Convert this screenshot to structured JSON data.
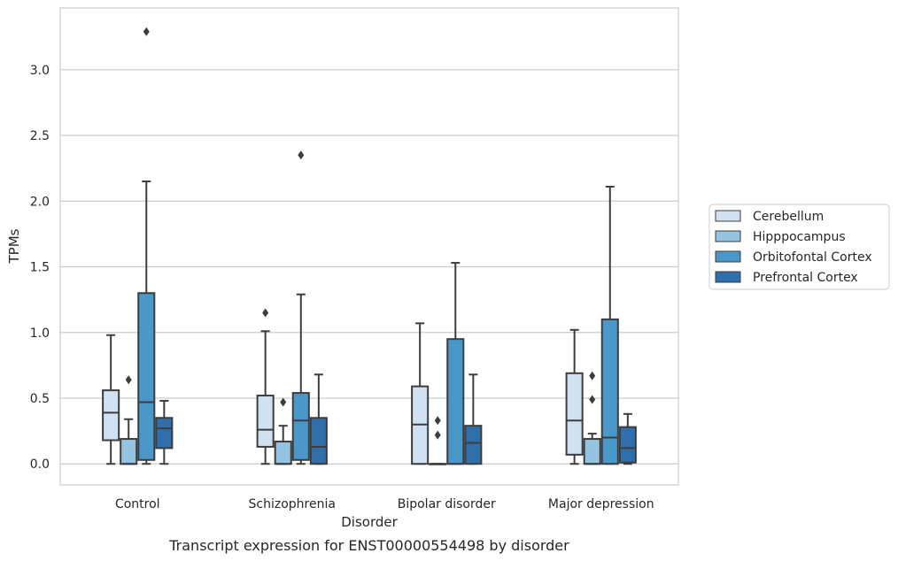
{
  "chart_data": {
    "type": "box",
    "title": "",
    "caption": "Transcript expression for ENST00000554498 by disorder",
    "xlabel": "Disorder",
    "ylabel": "TPMs",
    "ylim": [
      -0.16,
      3.47
    ],
    "yticks": [
      "0.0",
      "0.5",
      "1.0",
      "1.5",
      "2.0",
      "2.5",
      "3.0"
    ],
    "grid": true,
    "legend_position": "right",
    "categories": [
      "Control",
      "Schizophrenia",
      "Bipolar disorder",
      "Major depression"
    ],
    "series": [
      {
        "name": "Cerebellum",
        "color": "#d0e1f2",
        "boxes": [
          {
            "whisker_low": 0.0,
            "q1": 0.18,
            "median": 0.39,
            "q3": 0.56,
            "whisker_high": 0.98,
            "outliers": []
          },
          {
            "whisker_low": 0.0,
            "q1": 0.13,
            "median": 0.26,
            "q3": 0.52,
            "whisker_high": 1.01,
            "outliers": [
              1.15
            ]
          },
          {
            "whisker_low": 0.0,
            "q1": 0.0,
            "median": 0.3,
            "q3": 0.59,
            "whisker_high": 1.07,
            "outliers": []
          },
          {
            "whisker_low": 0.0,
            "q1": 0.07,
            "median": 0.33,
            "q3": 0.69,
            "whisker_high": 1.02,
            "outliers": []
          }
        ]
      },
      {
        "name": "Hipppocampus",
        "color": "#94c4df",
        "boxes": [
          {
            "whisker_low": 0.0,
            "q1": 0.0,
            "median": 0.0,
            "q3": 0.19,
            "whisker_high": 0.34,
            "outliers": [
              0.64
            ]
          },
          {
            "whisker_low": 0.0,
            "q1": 0.0,
            "median": 0.0,
            "q3": 0.17,
            "whisker_high": 0.29,
            "outliers": [
              0.47
            ]
          },
          {
            "whisker_low": 0.0,
            "q1": 0.0,
            "median": 0.0,
            "q3": 0.0,
            "whisker_high": 0.0,
            "outliers": [
              0.22,
              0.33
            ]
          },
          {
            "whisker_low": 0.0,
            "q1": 0.0,
            "median": 0.0,
            "q3": 0.19,
            "whisker_high": 0.23,
            "outliers": [
              0.49,
              0.67
            ]
          }
        ]
      },
      {
        "name": "Orbitofontal Cortex",
        "color": "#4a98c9",
        "boxes": [
          {
            "whisker_low": 0.0,
            "q1": 0.03,
            "median": 0.47,
            "q3": 1.3,
            "whisker_high": 2.15,
            "outliers": [
              3.29
            ]
          },
          {
            "whisker_low": 0.0,
            "q1": 0.03,
            "median": 0.33,
            "q3": 0.54,
            "whisker_high": 1.29,
            "outliers": [
              2.35
            ]
          },
          {
            "whisker_low": 0.0,
            "q1": 0.0,
            "median": 0.0,
            "q3": 0.95,
            "whisker_high": 1.53,
            "outliers": []
          },
          {
            "whisker_low": 0.0,
            "q1": 0.0,
            "median": 0.2,
            "q3": 1.1,
            "whisker_high": 2.11,
            "outliers": []
          }
        ]
      },
      {
        "name": "Prefrontal Cortex",
        "color": "#2f6fac",
        "boxes": [
          {
            "whisker_low": 0.0,
            "q1": 0.12,
            "median": 0.27,
            "q3": 0.35,
            "whisker_high": 0.48,
            "outliers": []
          },
          {
            "whisker_low": 0.0,
            "q1": 0.0,
            "median": 0.13,
            "q3": 0.35,
            "whisker_high": 0.68,
            "outliers": []
          },
          {
            "whisker_low": 0.0,
            "q1": 0.0,
            "median": 0.16,
            "q3": 0.29,
            "whisker_high": 0.68,
            "outliers": []
          },
          {
            "whisker_low": 0.0,
            "q1": 0.01,
            "median": 0.12,
            "q3": 0.28,
            "whisker_high": 0.38,
            "outliers": []
          }
        ]
      }
    ]
  }
}
